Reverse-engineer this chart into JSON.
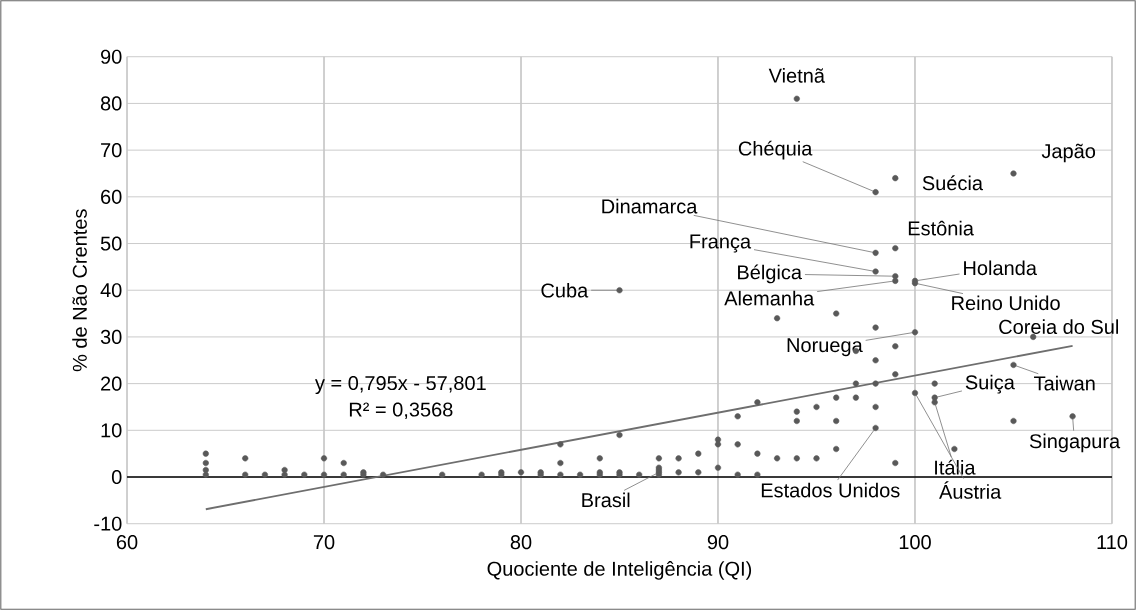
{
  "chart_data": {
    "type": "scatter",
    "xlabel": "Quociente de Inteligência (QI)",
    "ylabel": "% de Não Crentes",
    "xlim": [
      60,
      110
    ],
    "xticks": [
      60,
      70,
      80,
      90,
      100,
      110
    ],
    "ylim": [
      -10,
      90
    ],
    "yticks": [
      -10,
      0,
      10,
      20,
      30,
      40,
      50,
      60,
      70,
      80,
      90
    ],
    "grid": true,
    "marker": "circle",
    "series": [
      {
        "color": "#595959",
        "x": [
          64,
          64,
          64,
          64,
          66,
          66,
          67,
          68,
          68,
          69,
          70,
          70,
          71,
          71,
          72,
          72,
          73,
          76,
          78,
          79,
          79,
          80,
          81,
          81,
          82,
          82,
          82,
          83,
          84,
          84,
          84,
          85,
          85,
          85,
          85,
          86,
          87,
          87,
          87,
          87,
          87,
          88,
          88,
          89,
          89,
          90,
          90,
          90,
          91,
          91,
          91,
          92,
          92,
          92,
          93,
          93,
          94,
          94,
          94,
          94,
          95,
          95,
          96,
          96,
          96,
          96,
          97,
          97,
          97,
          98,
          98,
          98,
          98,
          98,
          98,
          98,
          98,
          99,
          99,
          99,
          99,
          99,
          99,
          99,
          100,
          100,
          100,
          100,
          101,
          101,
          101,
          102,
          105,
          105,
          105,
          106,
          108
        ],
        "values": [
          5,
          3,
          1.5,
          0.5,
          4,
          0.5,
          0.5,
          1.5,
          0.5,
          0.5,
          4,
          0.5,
          3,
          0.5,
          1,
          0.5,
          0.5,
          0.5,
          0.5,
          1,
          0.5,
          1,
          1,
          0.5,
          7,
          3,
          0.5,
          0.5,
          4,
          1,
          0.5,
          9,
          1,
          0.5,
          40,
          0.5,
          4,
          2,
          1.5,
          1,
          0.5,
          4,
          1,
          5,
          1,
          8,
          7,
          2,
          13,
          7,
          0.5,
          16,
          5,
          0.5,
          34,
          4,
          81,
          14,
          12,
          4,
          15,
          4,
          35,
          17,
          12,
          6,
          27,
          20,
          17,
          61,
          48,
          44,
          32,
          25,
          20,
          15,
          10.5,
          64,
          49,
          43,
          42,
          28,
          22,
          3,
          42,
          41.5,
          31,
          18,
          20,
          17,
          16,
          6,
          65,
          24,
          12,
          30,
          13
        ]
      },
      {
        "type": "line",
        "color": "#6e6e6e",
        "x": [
          64,
          108
        ],
        "values": [
          -6.9,
          28.1
        ],
        "line_style": "solid",
        "marker": "none"
      }
    ],
    "ref_lines": [
      {
        "axis": "y",
        "value": 0,
        "color": "#000000"
      }
    ],
    "annotations": [
      {
        "text": "Vietnã",
        "x": 94,
        "y": 81
      },
      {
        "text": "Chéquia",
        "x": 98,
        "y": 61
      },
      {
        "text": "Suécia",
        "x": 99,
        "y": 64
      },
      {
        "text": "Japão",
        "x": 105,
        "y": 65
      },
      {
        "text": "Dinamarca",
        "x": 98,
        "y": 48
      },
      {
        "text": "Estônia",
        "x": 99,
        "y": 49
      },
      {
        "text": "França",
        "x": 98,
        "y": 44
      },
      {
        "text": "Bélgica",
        "x": 99,
        "y": 43
      },
      {
        "text": "Alemanha",
        "x": 99,
        "y": 42
      },
      {
        "text": "Holanda",
        "x": 100,
        "y": 42
      },
      {
        "text": "Reino Unido",
        "x": 100,
        "y": 41.5
      },
      {
        "text": "Cuba",
        "x": 85,
        "y": 40
      },
      {
        "text": "Coreia do Sul",
        "x": 106,
        "y": 30
      },
      {
        "text": "Noruega",
        "x": 100,
        "y": 31
      },
      {
        "text": "Taiwan",
        "x": 105,
        "y": 24
      },
      {
        "text": "Suiça",
        "x": 101,
        "y": 17
      },
      {
        "text": "Singapura",
        "x": 108,
        "y": 13
      },
      {
        "text": "Itália",
        "x": 101,
        "y": 16
      },
      {
        "text": "Áustria",
        "x": 100,
        "y": 18
      },
      {
        "text": "Estados Unidos",
        "x": 98,
        "y": 10.5
      },
      {
        "text": "Brasil",
        "x": 87,
        "y": 1
      },
      "y = 0,795x - 57,801",
      "R² = 0,3568"
    ]
  }
}
